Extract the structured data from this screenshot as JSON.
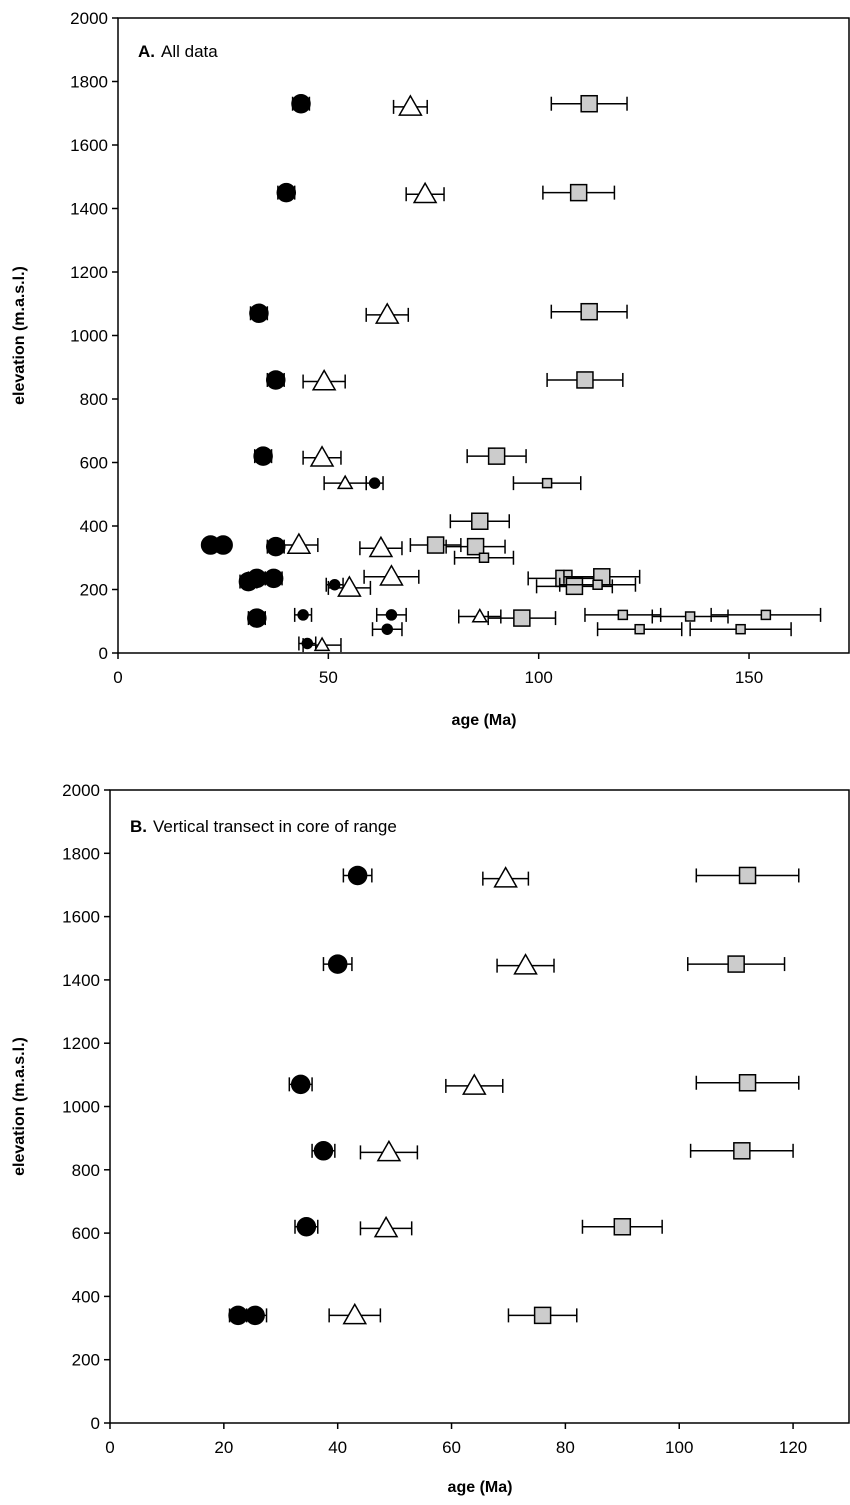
{
  "chart_data": [
    {
      "type": "scatter",
      "label": "A.",
      "title": "All data",
      "xlabel": "age (Ma)",
      "ylabel": "elevation (m.a.s.l.)",
      "xlim": [
        0,
        174
      ],
      "ylim": [
        0,
        2000
      ],
      "xticks": [
        0,
        50,
        100,
        150
      ],
      "yticks": [
        0,
        200,
        400,
        600,
        800,
        1000,
        1200,
        1400,
        1600,
        1800,
        2000
      ],
      "series": [
        {
          "marker": "circle",
          "size": "large",
          "color": "#000000",
          "x": [
            43.5,
            40,
            33.5,
            37.5,
            34.5,
            22,
            25,
            37.5,
            31,
            33,
            37,
            33
          ],
          "y": [
            1730,
            1450,
            1070,
            860,
            620,
            340,
            340,
            335,
            225,
            235,
            235,
            110
          ],
          "xerr": [
            2,
            2,
            2,
            2,
            2,
            1.5,
            1.5,
            2,
            2,
            2,
            2,
            2
          ]
        },
        {
          "marker": "circle",
          "size": "small",
          "color": "#000000",
          "x": [
            61,
            51.5,
            44,
            65,
            45,
            64
          ],
          "y": [
            535,
            215,
            120,
            120,
            30,
            75
          ],
          "xerr": [
            2,
            2,
            2,
            3.5,
            2,
            3.5
          ]
        },
        {
          "marker": "triangle",
          "size": "large",
          "color": "#ffffff",
          "x": [
            69.5,
            73,
            64,
            49,
            48.5,
            43,
            62.5,
            65,
            55
          ],
          "y": [
            1720,
            1445,
            1065,
            855,
            615,
            340,
            330,
            240,
            205
          ],
          "xerr": [
            4,
            4.5,
            5,
            5,
            4.5,
            4.5,
            5,
            6.5,
            5
          ]
        },
        {
          "marker": "triangle",
          "size": "small",
          "color": "#ffffff",
          "x": [
            54,
            86,
            48.5
          ],
          "y": [
            535,
            115,
            25
          ],
          "xerr": [
            5,
            5,
            4.5
          ]
        },
        {
          "marker": "square",
          "size": "large",
          "color": "#cccccc",
          "x": [
            112,
            109.5,
            112,
            111,
            90,
            86,
            75.5,
            85,
            106,
            108.5,
            115,
            96
          ],
          "y": [
            1730,
            1450,
            1075,
            860,
            620,
            415,
            340,
            335,
            235,
            210,
            240,
            110
          ],
          "xerr": [
            9,
            8.5,
            9,
            9,
            7,
            7,
            6,
            7,
            8.5,
            9,
            9,
            8
          ]
        },
        {
          "marker": "square",
          "size": "small",
          "color": "#cccccc",
          "x": [
            102,
            87,
            114,
            120,
            136,
            154,
            124,
            148
          ],
          "y": [
            535,
            300,
            215,
            120,
            115,
            120,
            75,
            75
          ],
          "xerr": [
            8,
            7,
            9,
            9,
            9,
            13,
            10,
            12
          ]
        }
      ]
    },
    {
      "type": "scatter",
      "label": "B.",
      "title": "Vertical transect in core of range",
      "xlabel": "age (Ma)",
      "ylabel": "elevation (m.a.s.l.)",
      "xlim": [
        0,
        130
      ],
      "ylim": [
        0,
        2000
      ],
      "xticks": [
        0,
        20,
        40,
        60,
        80,
        100,
        120
      ],
      "yticks": [
        0,
        200,
        400,
        600,
        800,
        1000,
        1200,
        1400,
        1600,
        1800,
        2000
      ],
      "series": [
        {
          "marker": "circle",
          "size": "large",
          "color": "#000000",
          "x": [
            43.5,
            40,
            33.5,
            37.5,
            34.5,
            22.5,
            25.5
          ],
          "y": [
            1730,
            1450,
            1070,
            860,
            620,
            340,
            340
          ],
          "xerr": [
            2.5,
            2.5,
            2,
            2,
            2,
            1.5,
            2
          ]
        },
        {
          "marker": "triangle",
          "size": "large",
          "color": "#ffffff",
          "x": [
            69.5,
            73,
            64,
            49,
            48.5,
            43
          ],
          "y": [
            1720,
            1445,
            1065,
            855,
            615,
            340
          ],
          "xerr": [
            4,
            5,
            5,
            5,
            4.5,
            4.5
          ]
        },
        {
          "marker": "square",
          "size": "large",
          "color": "#cccccc",
          "x": [
            112,
            110,
            112,
            111,
            90,
            76
          ],
          "y": [
            1730,
            1450,
            1075,
            860,
            620,
            340
          ],
          "xerr": [
            9,
            8.5,
            9,
            9,
            7,
            6
          ]
        }
      ]
    }
  ]
}
